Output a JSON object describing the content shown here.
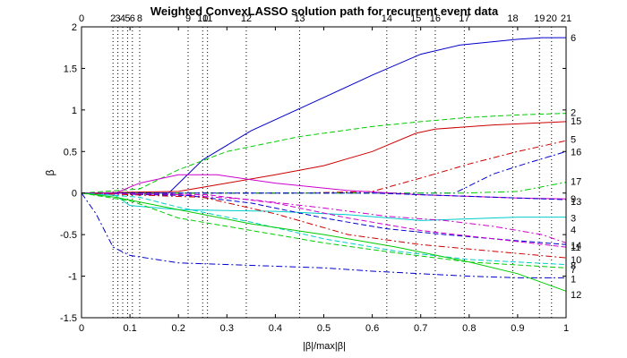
{
  "chart_data": {
    "type": "line",
    "title": "Weighted ConvexLASSO solution path for recurrent event data",
    "xlabel": "|β|/max|β|",
    "ylabel": "β",
    "xlim": [
      0,
      1
    ],
    "ylim": [
      -1.5,
      2
    ],
    "xticks": [
      "0",
      "0.1",
      "0.2",
      "0.3",
      "0.4",
      "0.5",
      "0.6",
      "0.7",
      "0.8",
      "0.9",
      "1"
    ],
    "yticks": [
      "-1.5",
      "-1",
      "-0.5",
      "0",
      "0.5",
      "1",
      "1.5",
      "2"
    ],
    "grid": false,
    "legend": "none",
    "entry_events": [
      {
        "x": 0.0,
        "label": "0"
      },
      {
        "x": 0.065,
        "label": "2"
      },
      {
        "x": 0.075,
        "label": "3"
      },
      {
        "x": 0.085,
        "label": "4"
      },
      {
        "x": 0.095,
        "label": "5"
      },
      {
        "x": 0.105,
        "label": "6"
      },
      {
        "x": 0.12,
        "label": "8"
      },
      {
        "x": 0.22,
        "label": "9"
      },
      {
        "x": 0.25,
        "label": "10"
      },
      {
        "x": 0.26,
        "label": "11"
      },
      {
        "x": 0.34,
        "label": "12"
      },
      {
        "x": 0.45,
        "label": "13"
      },
      {
        "x": 0.63,
        "label": "14"
      },
      {
        "x": 0.69,
        "label": "15"
      },
      {
        "x": 0.73,
        "label": "16"
      },
      {
        "x": 0.79,
        "label": "17"
      },
      {
        "x": 0.89,
        "label": "18"
      },
      {
        "x": 0.945,
        "label": "19"
      },
      {
        "x": 0.97,
        "label": "20"
      },
      {
        "x": 1.0,
        "label": "21"
      }
    ],
    "series": [
      {
        "name": "6",
        "color": "#0000cc",
        "dash": "solid",
        "x": [
          0,
          0.18,
          0.25,
          0.35,
          0.5,
          0.6,
          0.7,
          0.78,
          0.9,
          0.95,
          1.0
        ],
        "y": [
          0,
          0,
          0.4,
          0.75,
          1.15,
          1.42,
          1.67,
          1.78,
          1.85,
          1.87,
          1.87
        ],
        "end_label_y": 1.87
      },
      {
        "name": "2",
        "color": "#00cc00",
        "dash": "dashed",
        "x": [
          0,
          0.12,
          0.2,
          0.3,
          0.45,
          0.6,
          0.7,
          0.8,
          0.9,
          1.0
        ],
        "y": [
          0,
          0.05,
          0.28,
          0.5,
          0.68,
          0.8,
          0.86,
          0.91,
          0.94,
          0.96
        ],
        "end_label_y": 0.97
      },
      {
        "name": "15",
        "color": "#cc0000",
        "dash": "solid",
        "x": [
          0,
          0.2,
          0.3,
          0.4,
          0.5,
          0.6,
          0.69,
          0.73,
          0.85,
          1.0
        ],
        "y": [
          0,
          0.02,
          0.12,
          0.22,
          0.33,
          0.5,
          0.72,
          0.77,
          0.82,
          0.86
        ],
        "end_label_y": 0.87
      },
      {
        "name": "5",
        "color": "#cc0000",
        "dash": "dashdot",
        "x": [
          0,
          0.45,
          0.6,
          0.7,
          0.8,
          0.9,
          1.0
        ],
        "y": [
          0,
          0,
          0.02,
          0.18,
          0.35,
          0.5,
          0.63
        ],
        "end_label_y": 0.65
      },
      {
        "name": "16",
        "color": "#0000cc",
        "dash": "dashdot",
        "x": [
          0,
          0.73,
          0.77,
          0.85,
          0.92,
          1.0
        ],
        "y": [
          0,
          0,
          0.0,
          0.23,
          0.36,
          0.5
        ],
        "end_label_y": 0.5
      },
      {
        "name": "17",
        "color": "#00cc00",
        "dash": "dashdot",
        "x": [
          0,
          0.79,
          0.9,
          1.0
        ],
        "y": [
          0,
          0,
          0.02,
          0.13
        ],
        "end_label_y": 0.14
      },
      {
        "name": "9",
        "color": "#cc00cc",
        "dash": "solid",
        "x": [
          0,
          0.07,
          0.12,
          0.2,
          0.28,
          0.4,
          0.55,
          0.7,
          0.8,
          0.9,
          1.0
        ],
        "y": [
          0,
          0,
          0.12,
          0.22,
          0.22,
          0.12,
          0.03,
          -0.02,
          -0.04,
          -0.06,
          -0.07
        ],
        "end_label_y": -0.07
      },
      {
        "name": "13",
        "color": "#0000cc",
        "dash": "dashed",
        "x": [
          0,
          0.45,
          0.6,
          0.8,
          1.0
        ],
        "y": [
          0,
          0,
          0.0,
          -0.04,
          -0.08
        ],
        "end_label_y": -0.1
      },
      {
        "name": "3",
        "color": "#00cccc",
        "dash": "solid",
        "x": [
          0,
          0.07,
          0.1,
          0.2,
          0.3,
          0.4,
          0.55,
          0.7,
          0.8,
          0.9,
          1.0
        ],
        "y": [
          0,
          -0.03,
          -0.15,
          -0.2,
          -0.21,
          -0.22,
          -0.26,
          -0.33,
          -0.31,
          -0.29,
          -0.29
        ],
        "end_label_y": -0.3
      },
      {
        "name": "4",
        "color": "#cc00cc",
        "dash": "dashdot",
        "x": [
          0,
          0.2,
          0.35,
          0.5,
          0.63,
          0.75,
          0.85,
          0.95,
          1.0
        ],
        "y": [
          0,
          -0.02,
          -0.08,
          -0.18,
          -0.28,
          -0.33,
          -0.4,
          -0.5,
          -0.6
        ],
        "end_label_y": -0.44
      },
      {
        "name": "14",
        "color": "#0000cc",
        "dash": "dashed",
        "x": [
          0,
          0.22,
          0.35,
          0.5,
          0.63,
          0.75,
          0.85,
          1.0
        ],
        "y": [
          0,
          -0.03,
          -0.12,
          -0.3,
          -0.43,
          -0.5,
          -0.55,
          -0.62
        ],
        "end_label_y": -0.63
      },
      {
        "name": "11",
        "color": "#cc00cc",
        "dash": "dashed",
        "x": [
          0,
          0.26,
          0.4,
          0.55,
          0.7,
          0.85,
          1.0
        ],
        "y": [
          0,
          -0.02,
          -0.12,
          -0.3,
          -0.45,
          -0.55,
          -0.65
        ],
        "end_label_y": -0.65
      },
      {
        "name": "10",
        "color": "#cc0000",
        "dash": "dashdot",
        "x": [
          0,
          0.25,
          0.4,
          0.55,
          0.7,
          0.85,
          1.0
        ],
        "y": [
          0,
          -0.05,
          -0.25,
          -0.5,
          -0.62,
          -0.7,
          -0.78
        ],
        "end_label_y": -0.8
      },
      {
        "name": "8",
        "color": "#00cccc",
        "dash": "dashed",
        "x": [
          0,
          0.12,
          0.2,
          0.35,
          0.5,
          0.65,
          0.8,
          1.0
        ],
        "y": [
          0,
          -0.05,
          -0.17,
          -0.35,
          -0.55,
          -0.7,
          -0.8,
          -0.86
        ],
        "end_label_y": -0.87
      },
      {
        "name": "7",
        "color": "#00cc00",
        "dash": "dashed",
        "x": [
          0,
          0.105,
          0.2,
          0.35,
          0.5,
          0.65,
          0.8,
          1.0
        ],
        "y": [
          0,
          -0.1,
          -0.3,
          -0.45,
          -0.6,
          -0.72,
          -0.83,
          -0.9
        ],
        "end_label_y": -0.92
      },
      {
        "name": "1",
        "color": "#0000cc",
        "dash": "dashdot",
        "x": [
          0,
          0.03,
          0.065,
          0.1,
          0.2,
          0.35,
          0.5,
          0.6,
          0.7,
          0.8,
          0.9,
          1.0
        ],
        "y": [
          0,
          -0.25,
          -0.65,
          -0.75,
          -0.84,
          -0.87,
          -0.9,
          -0.94,
          -0.97,
          -1.0,
          -1.02,
          -1.02
        ],
        "end_label_y": -1.03
      },
      {
        "name": "12",
        "color": "#00cc00",
        "dash": "solid",
        "x": [
          0,
          0.07,
          0.2,
          0.35,
          0.5,
          0.65,
          0.8,
          0.9,
          1.0
        ],
        "y": [
          0,
          -0.05,
          -0.2,
          -0.37,
          -0.5,
          -0.65,
          -0.83,
          -0.97,
          -1.18
        ],
        "end_label_y": -1.22
      }
    ]
  }
}
